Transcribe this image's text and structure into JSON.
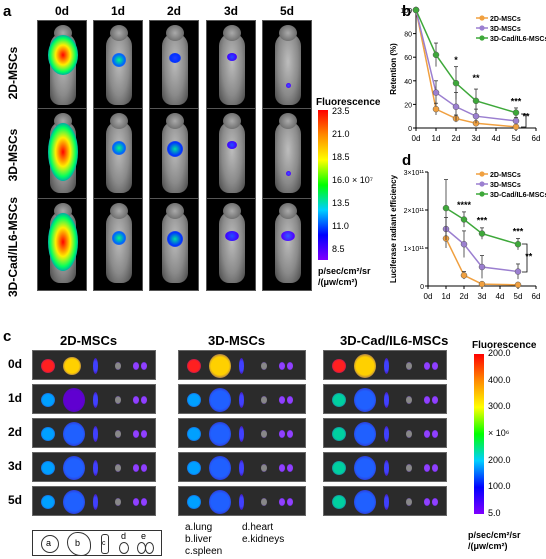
{
  "panel_a": {
    "label": "a",
    "columns": [
      "0d",
      "1d",
      "2d",
      "3d",
      "5d"
    ],
    "rows": [
      "2D-MSCs",
      "3D-MSCs",
      "3D-Cad/IL6-MSCs"
    ],
    "scale": {
      "title": "Fluorescence",
      "ticks": [
        "23.5",
        "21.0",
        "18.5",
        "16.0 × 10⁷",
        "13.5",
        "11.0",
        "8.5"
      ],
      "unit_lines": [
        "p/sec/cm²/sr",
        "/(μw/cm²)"
      ]
    }
  },
  "panel_b": {
    "label": "b",
    "chart_data": {
      "type": "line",
      "ylabel": "Retention (%)",
      "x_ticks": [
        "0d",
        "1d",
        "2d",
        "3d",
        "4d",
        "5d",
        "6d"
      ],
      "y_ticks": [
        "0",
        "20",
        "40",
        "60",
        "80",
        "100"
      ],
      "ylim": [
        0,
        100
      ],
      "x": [
        0,
        1,
        2,
        3,
        5
      ],
      "series": [
        {
          "name": "2D-MSCs",
          "color": "#f0a040",
          "values": [
            100,
            16,
            8,
            4,
            1
          ],
          "err": [
            0,
            5,
            3,
            2,
            1
          ]
        },
        {
          "name": "3D-MSCs",
          "color": "#9b7fd0",
          "values": [
            100,
            30,
            18,
            10,
            6
          ],
          "err": [
            0,
            10,
            12,
            6,
            3
          ]
        },
        {
          "name": "3D-Cad/IL6-MSCs",
          "color": "#3ea83a",
          "values": [
            100,
            62,
            38,
            23,
            13
          ],
          "err": [
            0,
            10,
            14,
            10,
            4
          ]
        }
      ],
      "annotations": [
        {
          "x": 2,
          "y": 55,
          "text": "*"
        },
        {
          "x": 3,
          "y": 40,
          "text": "**"
        },
        {
          "x": 5,
          "y": 20,
          "text": "***"
        },
        {
          "x": 5.5,
          "y": 7,
          "text": "**"
        }
      ]
    }
  },
  "panel_d": {
    "label": "d",
    "chart_data": {
      "type": "line",
      "ylabel": "Luciferase radiant efficiency",
      "x_ticks": [
        "0d",
        "1d",
        "2d",
        "3d",
        "4d",
        "5d",
        "6d"
      ],
      "y_ticks": [
        "0",
        "1×10¹¹",
        "2×10¹¹",
        "3×10¹¹"
      ],
      "ylim": [
        0,
        3
      ],
      "x": [
        1,
        2,
        3,
        5
      ],
      "series": [
        {
          "name": "2D-MSCs",
          "color": "#f0a040",
          "values": [
            1.25,
            0.28,
            0.05,
            0.03
          ],
          "err": [
            0.25,
            0.1,
            0.03,
            0.02
          ]
        },
        {
          "name": "3D-MSCs",
          "color": "#9b7fd0",
          "values": [
            1.5,
            1.1,
            0.5,
            0.38
          ],
          "err": [
            0.3,
            0.35,
            0.3,
            0.2
          ]
        },
        {
          "name": "3D-Cad/IL6-MSCs",
          "color": "#3ea83a",
          "values": [
            2.05,
            1.75,
            1.38,
            1.1
          ],
          "err": [
            0.75,
            0.2,
            0.15,
            0.15
          ]
        }
      ],
      "annotations": [
        {
          "x": 2,
          "y": 2.05,
          "text": "****"
        },
        {
          "x": 3,
          "y": 1.65,
          "text": "***"
        },
        {
          "x": 5,
          "y": 1.35,
          "text": "***"
        },
        {
          "x": 5.6,
          "y": 0.7,
          "text": "**"
        }
      ]
    }
  },
  "panel_c": {
    "label": "c",
    "groups": [
      "2D-MSCs",
      "3D-MSCs",
      "3D-Cad/IL6-MSCs"
    ],
    "rows": [
      "0d",
      "1d",
      "2d",
      "3d",
      "5d"
    ],
    "key_letters": [
      "a",
      "b",
      "c",
      "d",
      "e"
    ],
    "legend_left": [
      "a.lung",
      "b.liver",
      "c.spleen"
    ],
    "legend_right": [
      "d.heart",
      "e.kidneys"
    ],
    "scale": {
      "title": "Fluorescence",
      "ticks": [
        "200.0",
        "400.0",
        "300.0",
        "× 10⁶",
        "200.0",
        "100.0",
        "5.0"
      ],
      "unit_lines": [
        "p/sec/cm²/sr",
        "/(μw/cm²)"
      ]
    }
  }
}
